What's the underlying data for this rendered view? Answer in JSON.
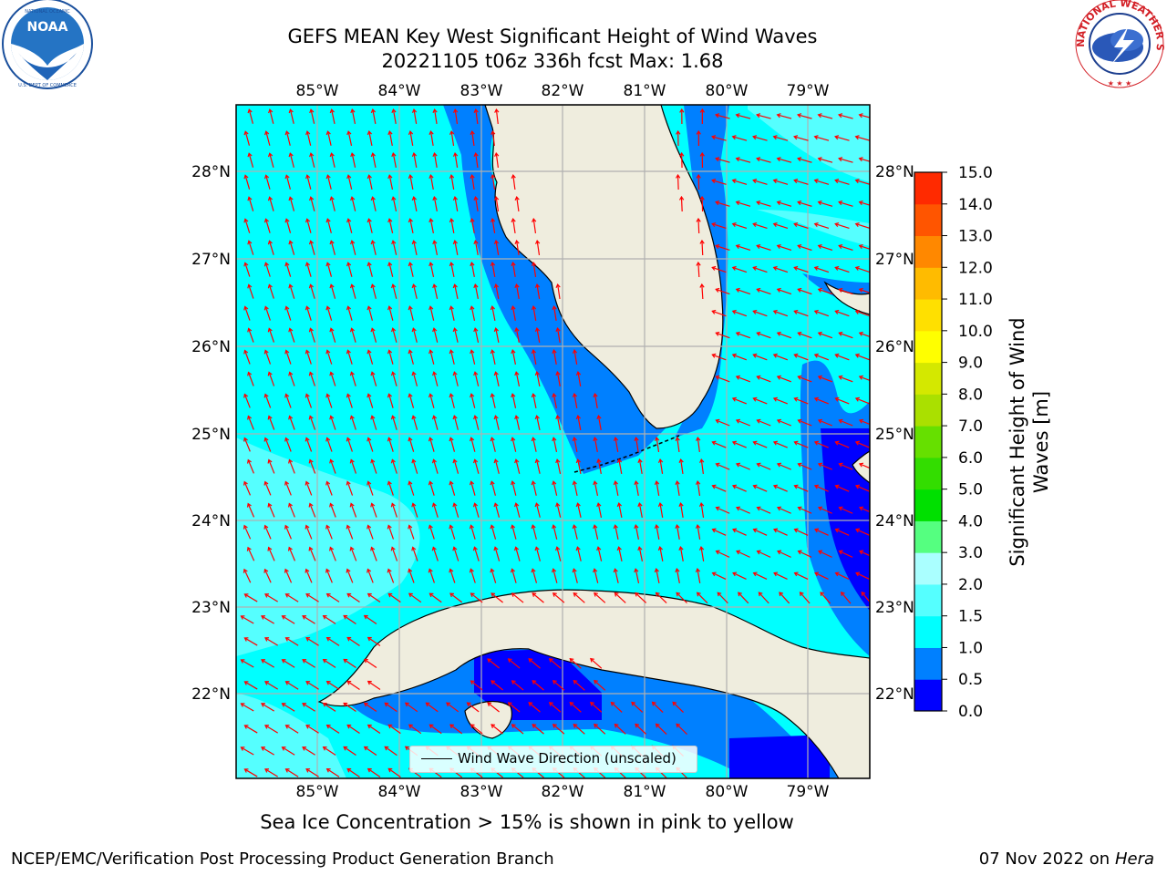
{
  "title": {
    "line1": "GEFS MEAN Key West Significant Height of Wind Waves",
    "line2": "20221105 t06z 336h fcst   Max: 1.68"
  },
  "logos": {
    "left": {
      "name": "NOAA",
      "ring_text": "NATIONAL OCEANIC AND ATMOSPHERIC ADMINISTRATION · U.S. DEPARTMENT OF COMMERCE"
    },
    "right": {
      "ring_text": "NATIONAL WEATHER SERVICE"
    }
  },
  "map": {
    "lon_ticks": [
      "85°W",
      "84°W",
      "83°W",
      "82°W",
      "81°W",
      "80°W",
      "79°W"
    ],
    "lat_ticks": [
      "28°N",
      "27°N",
      "26°N",
      "25°N",
      "24°N",
      "23°N",
      "22°N"
    ],
    "legend_label": "Wind Wave Direction (unscaled)",
    "ocean_color": "#00ffff",
    "shallow_color": "#0080ff",
    "deep_color": "#0000ff",
    "land_color": "#efedde",
    "arrow_color": "#ff0000"
  },
  "colorbar": {
    "label": "Significant Height of Wind Waves [m]",
    "label_line1": "Significant Height of Wind",
    "label_line2": "Waves [m]",
    "ticks": [
      "0.0",
      "0.5",
      "1.0",
      "1.5",
      "2.0",
      "3.0",
      "4.0",
      "5.0",
      "6.0",
      "7.0",
      "8.0",
      "9.0",
      "10.0",
      "11.0",
      "12.0",
      "13.0",
      "14.0",
      "15.0"
    ],
    "colors": [
      "#0000ff",
      "#0080ff",
      "#00ffff",
      "#55ffff",
      "#aaffff",
      "#55ff80",
      "#00e000",
      "#33dd00",
      "#66e000",
      "#aae000",
      "#d4e800",
      "#ffff00",
      "#ffe000",
      "#ffbb00",
      "#ff8800",
      "#ff5500",
      "#ff2a00"
    ]
  },
  "bottom_note": "Sea Ice Concentration > 15% is shown in pink to yellow",
  "footer": {
    "left": "NCEP/EMC/Verification Post Processing Product Generation Branch",
    "date": "07 Nov 2022 on",
    "machine": "Hera"
  }
}
